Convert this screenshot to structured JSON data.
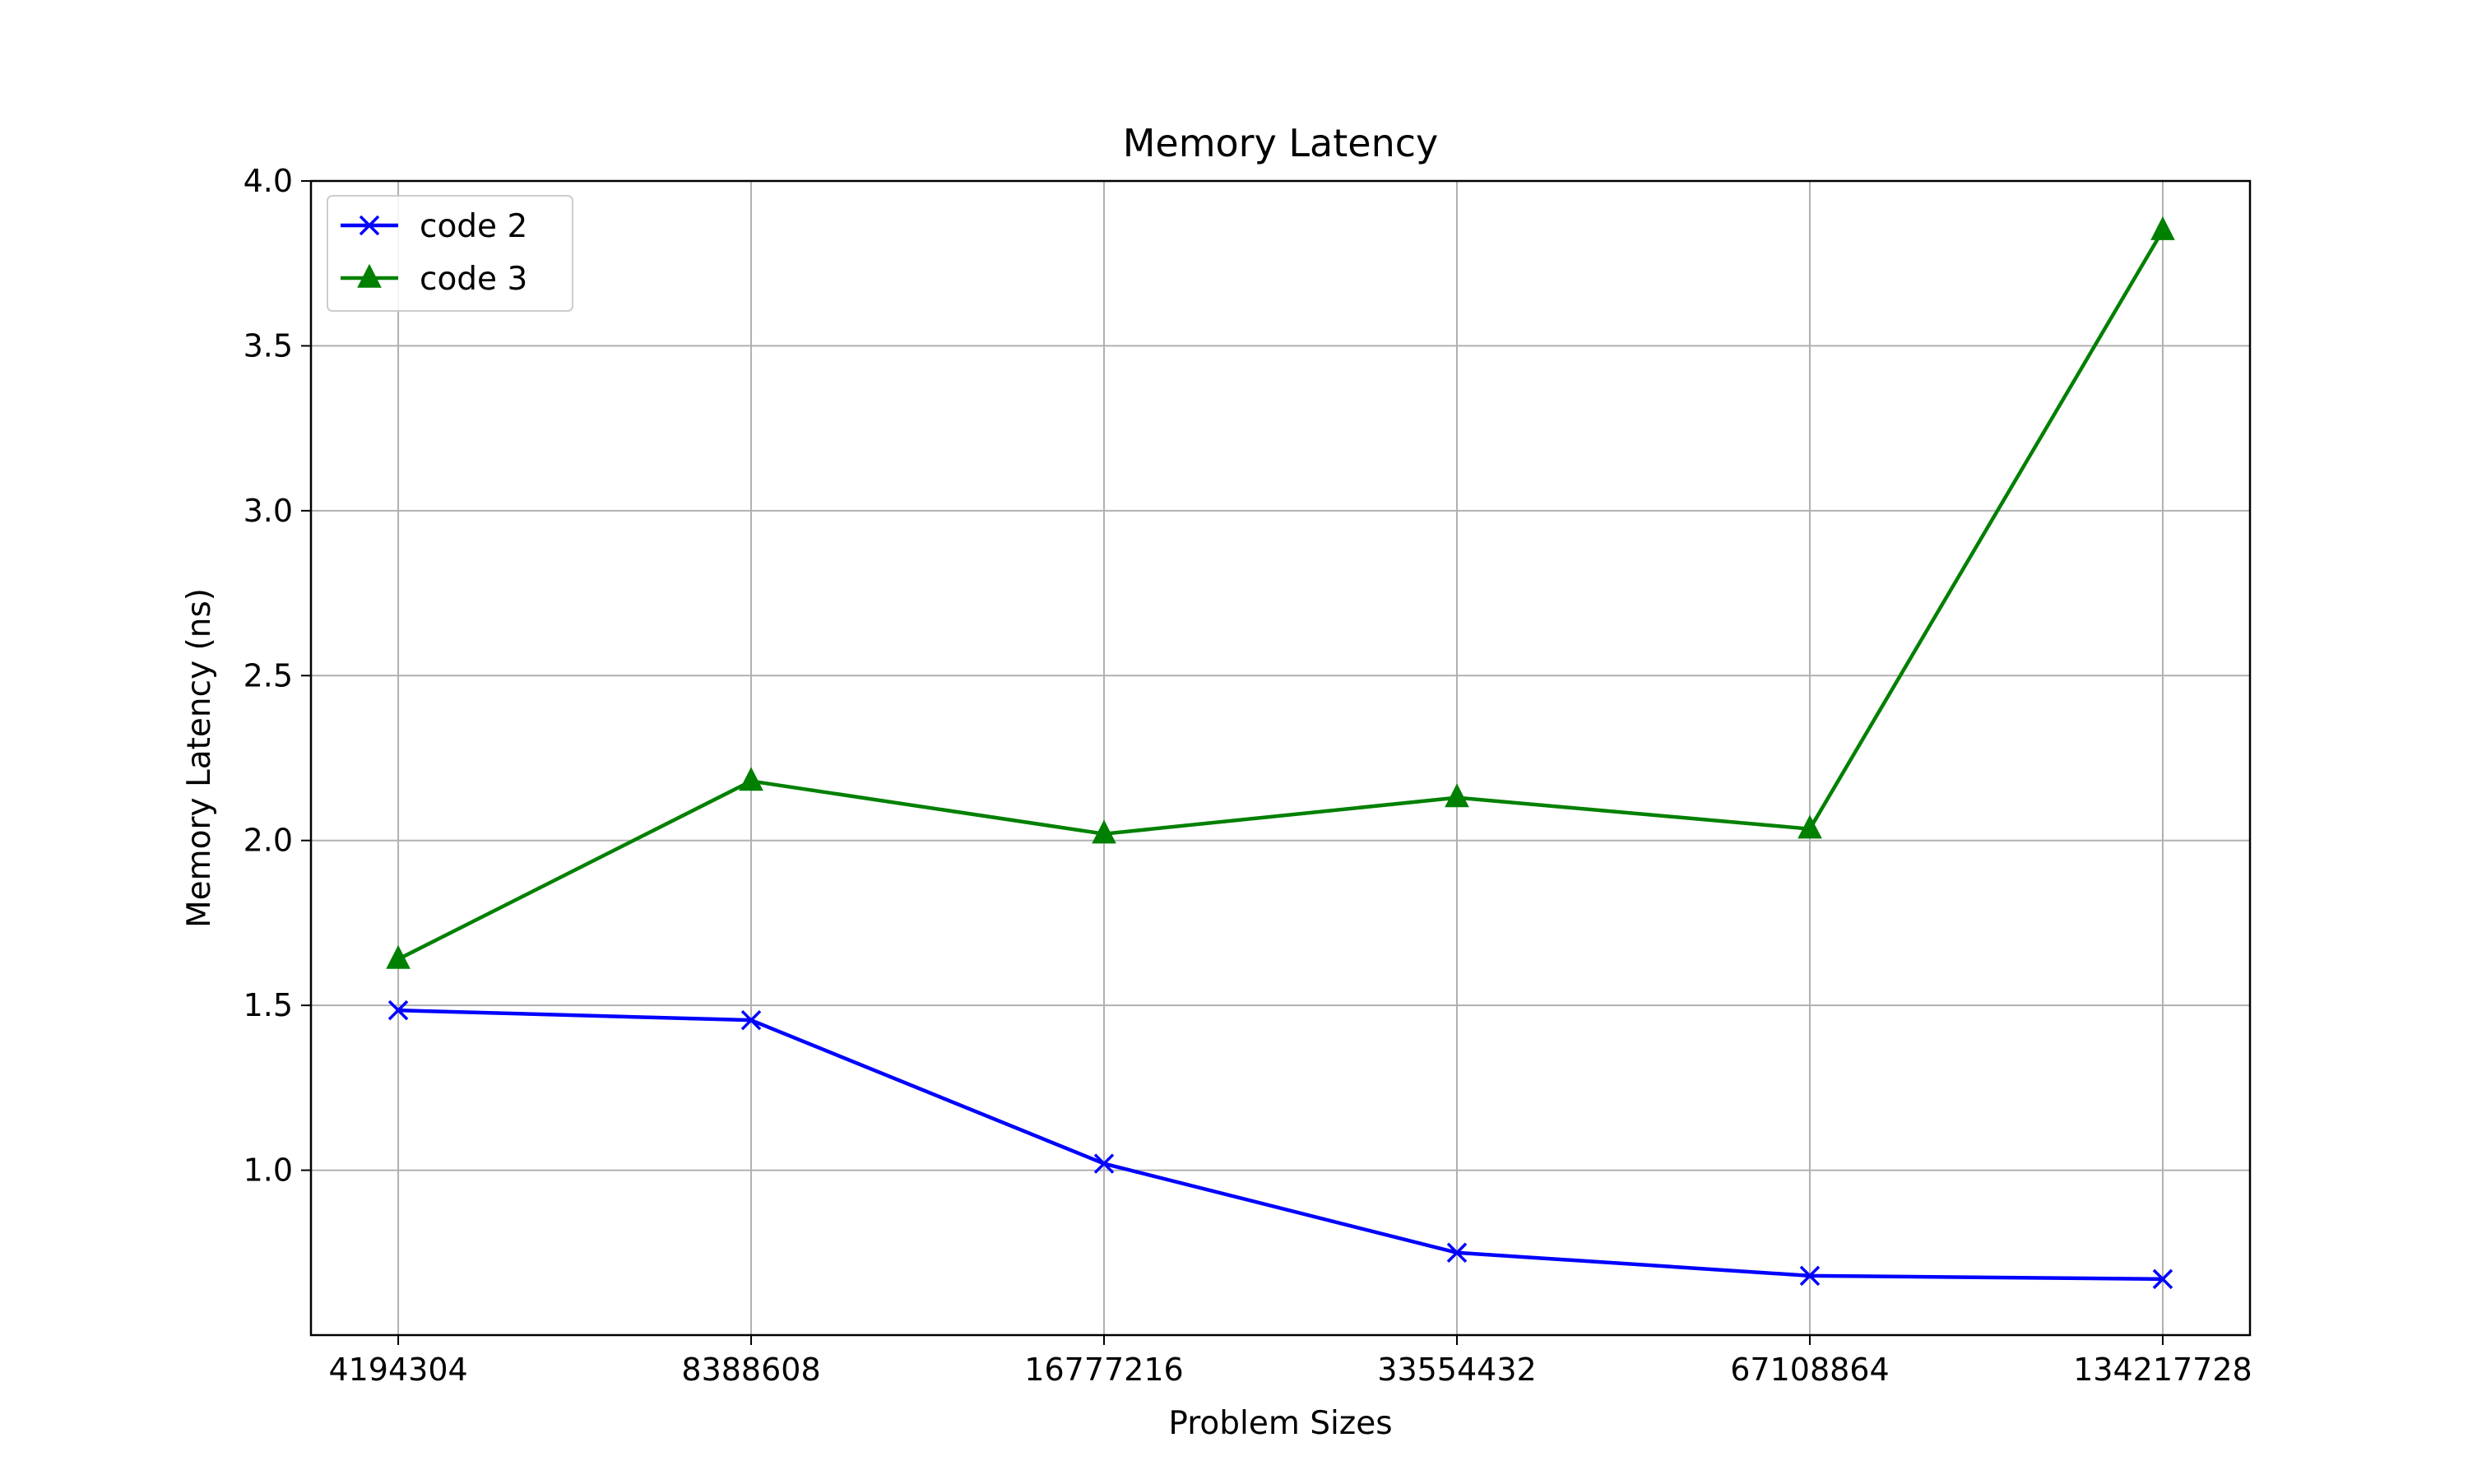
{
  "chart_data": {
    "type": "line",
    "title": "Memory Latency",
    "xlabel": "Problem Sizes",
    "ylabel": "Memory Latency (ns)",
    "categories": [
      "4194304",
      "8388608",
      "16777216",
      "33554432",
      "67108864",
      "134217728"
    ],
    "ylim": [
      0.5,
      4.0
    ],
    "yticks": [
      "1.0",
      "1.5",
      "2.0",
      "2.5",
      "3.0",
      "3.5",
      "4.0"
    ],
    "grid": true,
    "legend_position": "top-left",
    "series": [
      {
        "name": "code 2",
        "values": [
          1.485,
          1.455,
          1.02,
          0.75,
          0.68,
          0.67
        ],
        "color": "#0000ff",
        "marker": "x"
      },
      {
        "name": "code 3",
        "values": [
          1.64,
          2.18,
          2.02,
          2.13,
          2.035,
          3.85
        ],
        "color": "#008000",
        "marker": "triangle"
      }
    ]
  }
}
